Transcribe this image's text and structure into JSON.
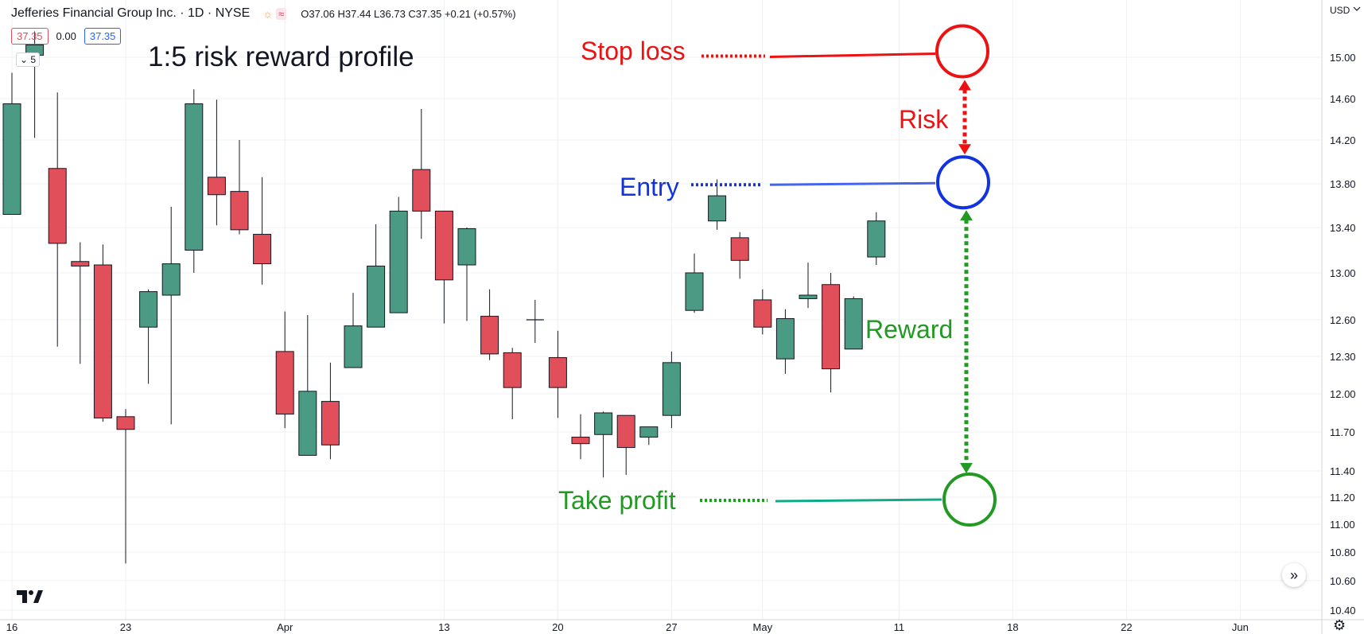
{
  "header": {
    "symbol_title": "Jefferies Financial Group Inc. · 1D · NYSE",
    "ohlc": "O37.06 H37.44 L36.73 C37.35 +0.21 (+0.57%)",
    "price_bid": "37.35",
    "price_spread": "0.00",
    "price_ask": "37.35",
    "collapse_count": "5"
  },
  "annotations": {
    "title": "1:5 risk reward profile",
    "stop_loss": "Stop loss",
    "entry": "Entry",
    "take_profit": "Take profit",
    "risk": "Risk",
    "reward": "Reward"
  },
  "colors": {
    "up": "#4a9a84",
    "down": "#e04f5a",
    "stop": "#ee1111",
    "entry": "#1133dd",
    "target": "#229922",
    "entry_line": "#4466ee",
    "target_line": "#11aa88"
  },
  "chart_data": {
    "type": "candlestick",
    "currency_label": "USD",
    "y_ticks": [
      "15.00",
      "14.60",
      "14.20",
      "13.80",
      "13.40",
      "13.00",
      "12.60",
      "12.30",
      "12.00",
      "11.70",
      "11.40",
      "11.20",
      "11.00",
      "10.80",
      "10.60",
      "10.40"
    ],
    "x_ticks": [
      {
        "label": "16",
        "bar": 0
      },
      {
        "label": "23",
        "bar": 5
      },
      {
        "label": "Apr",
        "bar": 12
      },
      {
        "label": "13",
        "bar": 19
      },
      {
        "label": "20",
        "bar": 24
      },
      {
        "label": "27",
        "bar": 29
      },
      {
        "label": "May",
        "bar": 33
      },
      {
        "label": "11",
        "bar": 39
      },
      {
        "label": "18",
        "bar": 44
      },
      {
        "label": "22",
        "bar": 49
      },
      {
        "label": "Jun",
        "bar": 54
      }
    ],
    "candles": [
      {
        "o": 13.52,
        "h": 14.85,
        "l": 13.52,
        "c": 14.55
      },
      {
        "o": 15.02,
        "h": 15.25,
        "l": 14.22,
        "c": 15.12
      },
      {
        "o": 13.94,
        "h": 14.66,
        "l": 12.38,
        "c": 13.26
      },
      {
        "o": 13.1,
        "h": 13.27,
        "l": 12.24,
        "c": 13.06
      },
      {
        "o": 13.07,
        "h": 13.25,
        "l": 11.78,
        "c": 11.81
      },
      {
        "o": 11.82,
        "h": 11.88,
        "l": 10.72,
        "c": 11.72
      },
      {
        "o": 12.54,
        "h": 12.86,
        "l": 12.08,
        "c": 12.84
      },
      {
        "o": 12.81,
        "h": 13.59,
        "l": 11.76,
        "c": 13.08
      },
      {
        "o": 13.2,
        "h": 14.69,
        "l": 13.0,
        "c": 14.55
      },
      {
        "o": 13.86,
        "h": 14.59,
        "l": 13.42,
        "c": 13.7
      },
      {
        "o": 13.73,
        "h": 14.2,
        "l": 13.34,
        "c": 13.38
      },
      {
        "o": 13.34,
        "h": 13.86,
        "l": 12.9,
        "c": 13.08
      },
      {
        "o": 12.34,
        "h": 12.67,
        "l": 11.73,
        "c": 11.84
      },
      {
        "o": 11.52,
        "h": 12.64,
        "l": 11.52,
        "c": 12.02
      },
      {
        "o": 11.94,
        "h": 12.25,
        "l": 11.49,
        "c": 11.6
      },
      {
        "o": 12.21,
        "h": 12.83,
        "l": 12.21,
        "c": 12.55
      },
      {
        "o": 12.54,
        "h": 13.43,
        "l": 12.54,
        "c": 13.06
      },
      {
        "o": 12.66,
        "h": 13.68,
        "l": 12.66,
        "c": 13.55
      },
      {
        "o": 13.93,
        "h": 14.5,
        "l": 13.3,
        "c": 13.55
      },
      {
        "o": 13.55,
        "h": 13.55,
        "l": 12.57,
        "c": 12.94
      },
      {
        "o": 13.07,
        "h": 13.4,
        "l": 12.59,
        "c": 13.39
      },
      {
        "o": 12.63,
        "h": 12.86,
        "l": 12.27,
        "c": 12.32
      },
      {
        "o": 12.33,
        "h": 12.37,
        "l": 11.8,
        "c": 12.05
      },
      {
        "o": 12.6,
        "h": 12.77,
        "l": 12.41,
        "c": 12.6
      },
      {
        "o": 12.29,
        "h": 12.51,
        "l": 11.81,
        "c": 12.05
      },
      {
        "o": 11.66,
        "h": 11.84,
        "l": 11.49,
        "c": 11.61
      },
      {
        "o": 11.68,
        "h": 11.86,
        "l": 11.35,
        "c": 11.85
      },
      {
        "o": 11.83,
        "h": 11.83,
        "l": 11.37,
        "c": 11.58
      },
      {
        "o": 11.66,
        "h": 11.74,
        "l": 11.6,
        "c": 11.74
      },
      {
        "o": 11.83,
        "h": 12.34,
        "l": 11.73,
        "c": 12.25
      },
      {
        "o": 12.68,
        "h": 13.17,
        "l": 12.66,
        "c": 13.0
      },
      {
        "o": 13.46,
        "h": 13.84,
        "l": 13.38,
        "c": 13.69
      },
      {
        "o": 13.31,
        "h": 13.36,
        "l": 12.95,
        "c": 13.11
      },
      {
        "o": 12.77,
        "h": 12.86,
        "l": 12.48,
        "c": 12.54
      },
      {
        "o": 12.28,
        "h": 12.69,
        "l": 12.16,
        "c": 12.61
      },
      {
        "o": 12.78,
        "h": 13.09,
        "l": 12.7,
        "c": 12.81
      },
      {
        "o": 12.9,
        "h": 13.0,
        "l": 12.01,
        "c": 12.2
      },
      {
        "o": 12.36,
        "h": 12.8,
        "l": 12.36,
        "c": 12.78
      },
      {
        "o": 13.14,
        "h": 13.54,
        "l": 13.07,
        "c": 13.46
      }
    ],
    "levels": {
      "stop_loss": 15.05,
      "entry": 13.82,
      "take_profit": 11.2
    }
  }
}
